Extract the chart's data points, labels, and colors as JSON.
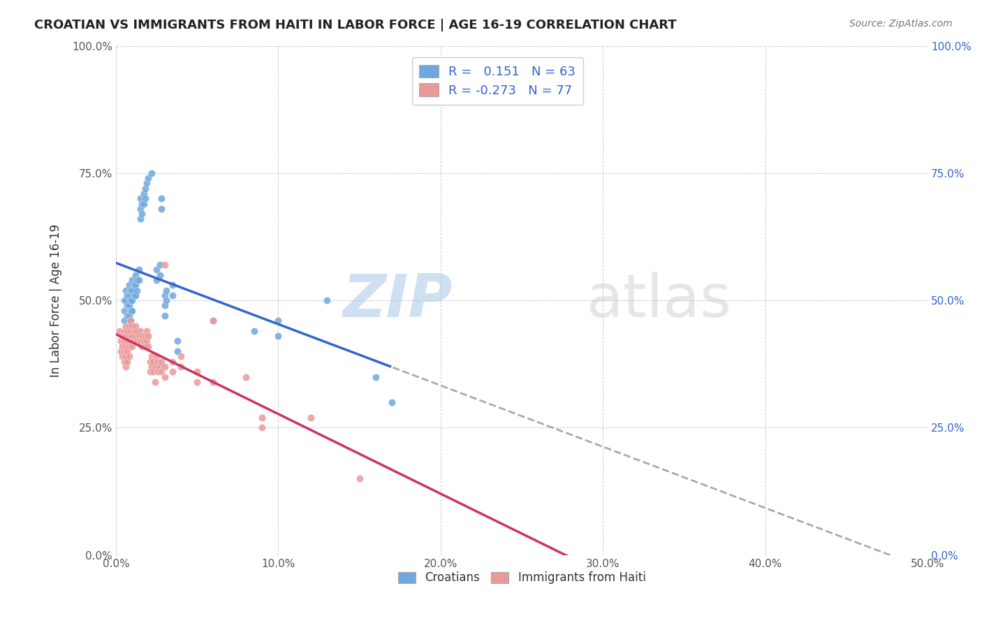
{
  "title": "CROATIAN VS IMMIGRANTS FROM HAITI IN LABOR FORCE | AGE 16-19 CORRELATION CHART",
  "source": "Source: ZipAtlas.com",
  "ylabel": "In Labor Force | Age 16-19",
  "xlabel_croatians": "Croatians",
  "xlabel_haiti": "Immigrants from Haiti",
  "xmin": 0.0,
  "xmax": 0.5,
  "ymin": 0.0,
  "ymax": 1.0,
  "ytick_labels": [
    "0.0%",
    "25.0%",
    "50.0%",
    "75.0%",
    "100.0%"
  ],
  "ytick_values": [
    0.0,
    0.25,
    0.5,
    0.75,
    1.0
  ],
  "xtick_labels": [
    "0.0%",
    "10.0%",
    "20.0%",
    "30.0%",
    "40.0%",
    "50.0%"
  ],
  "xtick_values": [
    0.0,
    0.1,
    0.2,
    0.3,
    0.4,
    0.5
  ],
  "R_croatian": 0.151,
  "N_croatian": 63,
  "R_haiti": -0.273,
  "N_haiti": 77,
  "blue_color": "#6fa8dc",
  "pink_color": "#ea9999",
  "blue_line_color": "#3366cc",
  "pink_line_color": "#cc3366",
  "watermark_zip": "ZIP",
  "watermark_atlas": "atlas",
  "croatian_points": [
    [
      0.005,
      0.5
    ],
    [
      0.005,
      0.48
    ],
    [
      0.005,
      0.46
    ],
    [
      0.006,
      0.52
    ],
    [
      0.006,
      0.5
    ],
    [
      0.007,
      0.51
    ],
    [
      0.007,
      0.49
    ],
    [
      0.007,
      0.47
    ],
    [
      0.008,
      0.53
    ],
    [
      0.008,
      0.51
    ],
    [
      0.008,
      0.49
    ],
    [
      0.008,
      0.47
    ],
    [
      0.009,
      0.52
    ],
    [
      0.009,
      0.5
    ],
    [
      0.009,
      0.48
    ],
    [
      0.009,
      0.46
    ],
    [
      0.01,
      0.54
    ],
    [
      0.01,
      0.52
    ],
    [
      0.01,
      0.5
    ],
    [
      0.01,
      0.48
    ],
    [
      0.011,
      0.53
    ],
    [
      0.011,
      0.51
    ],
    [
      0.012,
      0.55
    ],
    [
      0.012,
      0.53
    ],
    [
      0.012,
      0.51
    ],
    [
      0.013,
      0.54
    ],
    [
      0.013,
      0.52
    ],
    [
      0.014,
      0.56
    ],
    [
      0.014,
      0.54
    ],
    [
      0.015,
      0.7
    ],
    [
      0.015,
      0.68
    ],
    [
      0.015,
      0.66
    ],
    [
      0.016,
      0.69
    ],
    [
      0.016,
      0.67
    ],
    [
      0.017,
      0.71
    ],
    [
      0.017,
      0.69
    ],
    [
      0.018,
      0.72
    ],
    [
      0.018,
      0.7
    ],
    [
      0.019,
      0.73
    ],
    [
      0.02,
      0.74
    ],
    [
      0.022,
      0.75
    ],
    [
      0.025,
      0.56
    ],
    [
      0.025,
      0.54
    ],
    [
      0.027,
      0.57
    ],
    [
      0.027,
      0.55
    ],
    [
      0.028,
      0.7
    ],
    [
      0.028,
      0.68
    ],
    [
      0.03,
      0.51
    ],
    [
      0.03,
      0.49
    ],
    [
      0.03,
      0.47
    ],
    [
      0.031,
      0.52
    ],
    [
      0.031,
      0.5
    ],
    [
      0.035,
      0.53
    ],
    [
      0.035,
      0.51
    ],
    [
      0.038,
      0.42
    ],
    [
      0.038,
      0.4
    ],
    [
      0.06,
      0.46
    ],
    [
      0.085,
      0.44
    ],
    [
      0.1,
      0.46
    ],
    [
      0.1,
      0.43
    ],
    [
      0.13,
      0.5
    ],
    [
      0.16,
      0.35
    ],
    [
      0.17,
      0.3
    ]
  ],
  "haiti_points": [
    [
      0.002,
      0.44
    ],
    [
      0.003,
      0.42
    ],
    [
      0.003,
      0.4
    ],
    [
      0.004,
      0.43
    ],
    [
      0.004,
      0.41
    ],
    [
      0.004,
      0.39
    ],
    [
      0.005,
      0.44
    ],
    [
      0.005,
      0.42
    ],
    [
      0.005,
      0.4
    ],
    [
      0.005,
      0.38
    ],
    [
      0.006,
      0.45
    ],
    [
      0.006,
      0.43
    ],
    [
      0.006,
      0.41
    ],
    [
      0.006,
      0.39
    ],
    [
      0.006,
      0.37
    ],
    [
      0.007,
      0.44
    ],
    [
      0.007,
      0.42
    ],
    [
      0.007,
      0.4
    ],
    [
      0.007,
      0.38
    ],
    [
      0.008,
      0.45
    ],
    [
      0.008,
      0.43
    ],
    [
      0.008,
      0.41
    ],
    [
      0.008,
      0.39
    ],
    [
      0.009,
      0.46
    ],
    [
      0.009,
      0.44
    ],
    [
      0.009,
      0.42
    ],
    [
      0.01,
      0.45
    ],
    [
      0.01,
      0.43
    ],
    [
      0.01,
      0.41
    ],
    [
      0.011,
      0.44
    ],
    [
      0.011,
      0.42
    ],
    [
      0.012,
      0.45
    ],
    [
      0.012,
      0.43
    ],
    [
      0.013,
      0.44
    ],
    [
      0.013,
      0.42
    ],
    [
      0.014,
      0.43
    ],
    [
      0.015,
      0.44
    ],
    [
      0.015,
      0.42
    ],
    [
      0.016,
      0.43
    ],
    [
      0.016,
      0.41
    ],
    [
      0.017,
      0.42
    ],
    [
      0.018,
      0.43
    ],
    [
      0.018,
      0.41
    ],
    [
      0.019,
      0.44
    ],
    [
      0.019,
      0.42
    ],
    [
      0.02,
      0.43
    ],
    [
      0.02,
      0.41
    ],
    [
      0.021,
      0.38
    ],
    [
      0.021,
      0.36
    ],
    [
      0.022,
      0.39
    ],
    [
      0.022,
      0.37
    ],
    [
      0.023,
      0.38
    ],
    [
      0.023,
      0.36
    ],
    [
      0.024,
      0.34
    ],
    [
      0.025,
      0.39
    ],
    [
      0.025,
      0.37
    ],
    [
      0.026,
      0.38
    ],
    [
      0.026,
      0.36
    ],
    [
      0.027,
      0.37
    ],
    [
      0.028,
      0.38
    ],
    [
      0.028,
      0.36
    ],
    [
      0.03,
      0.57
    ],
    [
      0.03,
      0.37
    ],
    [
      0.03,
      0.35
    ],
    [
      0.035,
      0.38
    ],
    [
      0.035,
      0.36
    ],
    [
      0.04,
      0.39
    ],
    [
      0.04,
      0.37
    ],
    [
      0.05,
      0.36
    ],
    [
      0.05,
      0.34
    ],
    [
      0.06,
      0.46
    ],
    [
      0.06,
      0.34
    ],
    [
      0.08,
      0.35
    ],
    [
      0.09,
      0.27
    ],
    [
      0.09,
      0.25
    ],
    [
      0.12,
      0.27
    ],
    [
      0.15,
      0.15
    ]
  ]
}
